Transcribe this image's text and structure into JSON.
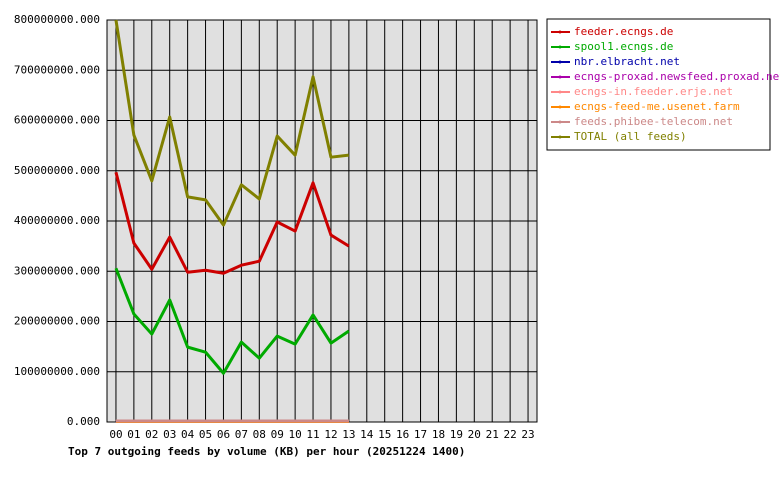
{
  "chart_data": {
    "type": "line",
    "title": "Top 7 outgoing feeds by volume (KB) per hour (20251224 1400)",
    "categories": [
      "00",
      "01",
      "02",
      "03",
      "04",
      "05",
      "06",
      "07",
      "08",
      "09",
      "10",
      "11",
      "12",
      "13",
      "14",
      "15",
      "16",
      "17",
      "18",
      "19",
      "20",
      "21",
      "22",
      "23"
    ],
    "series": [
      {
        "name": "feeder.ecngs.de",
        "color": "#cc0000",
        "values": [
          497000000,
          356000000,
          304000000,
          368000000,
          298000000,
          302000000,
          296000000,
          312000000,
          320000000,
          398000000,
          380000000,
          476000000,
          372000000,
          350000000,
          null,
          null,
          null,
          null,
          null,
          null,
          null,
          null,
          null,
          null
        ]
      },
      {
        "name": "spool1.ecngs.de",
        "color": "#00aa00",
        "values": [
          306000000,
          215000000,
          175000000,
          243000000,
          149000000,
          139000000,
          97000000,
          159000000,
          127000000,
          171000000,
          155000000,
          213000000,
          157000000,
          181000000,
          null,
          null,
          null,
          null,
          null,
          null,
          null,
          null,
          null,
          null
        ]
      },
      {
        "name": "nbr.elbracht.net",
        "color": "#0000aa",
        "values": [
          1000000,
          1000000,
          1000000,
          1000000,
          1000000,
          1000000,
          1000000,
          1000000,
          1000000,
          1000000,
          1000000,
          1000000,
          1000000,
          1000000,
          null,
          null,
          null,
          null,
          null,
          null,
          null,
          null,
          null,
          null
        ]
      },
      {
        "name": "ecngs-proxad.newsfeed.proxad.net",
        "color": "#aa00aa",
        "values": [
          1000000,
          1000000,
          1000000,
          1000000,
          1000000,
          1000000,
          1000000,
          1000000,
          1000000,
          1000000,
          1000000,
          1000000,
          1000000,
          1000000,
          null,
          null,
          null,
          null,
          null,
          null,
          null,
          null,
          null,
          null
        ]
      },
      {
        "name": "ecngs-in.feeder.erje.net",
        "color": "#ff8888",
        "values": [
          2000000,
          2000000,
          2000000,
          2000000,
          2000000,
          2000000,
          2000000,
          2000000,
          2000000,
          2000000,
          2000000,
          2000000,
          2000000,
          2000000,
          null,
          null,
          null,
          null,
          null,
          null,
          null,
          null,
          null,
          null
        ]
      },
      {
        "name": "ecngs-feed-me.usenet.farm",
        "color": "#ff8800",
        "values": [
          1000000,
          1000000,
          1000000,
          1000000,
          1000000,
          1000000,
          1000000,
          1000000,
          1000000,
          1000000,
          1000000,
          1000000,
          1000000,
          1000000,
          null,
          null,
          null,
          null,
          null,
          null,
          null,
          null,
          null,
          null
        ]
      },
      {
        "name": "feeds.phibee-telecom.net",
        "color": "#cc8888",
        "values": [
          2000000,
          2000000,
          2000000,
          2000000,
          2000000,
          2000000,
          2000000,
          2000000,
          2000000,
          2000000,
          2000000,
          2000000,
          2000000,
          2000000,
          null,
          null,
          null,
          null,
          null,
          null,
          null,
          null,
          null,
          null
        ]
      },
      {
        "name": "TOTAL (all feeds)",
        "color": "#808000",
        "values": [
          800000000,
          571000000,
          480000000,
          607000000,
          448000000,
          442000000,
          392000000,
          472000000,
          444000000,
          569000000,
          531000000,
          687000000,
          527000000,
          531000000,
          null,
          null,
          null,
          null,
          null,
          null,
          null,
          null,
          null,
          null
        ]
      }
    ],
    "ylim": [
      0,
      800000000
    ],
    "yticks": [
      {
        "value": 0,
        "label": "0.000"
      },
      {
        "value": 100000000,
        "label": "100000000.000"
      },
      {
        "value": 200000000,
        "label": "200000000.000"
      },
      {
        "value": 300000000,
        "label": "300000000.000"
      },
      {
        "value": 400000000,
        "label": "400000000.000"
      },
      {
        "value": 500000000,
        "label": "500000000.000"
      },
      {
        "value": 600000000,
        "label": "600000000.000"
      },
      {
        "value": 700000000,
        "label": "700000000.000"
      },
      {
        "value": 800000000,
        "label": "800000000.000"
      }
    ],
    "grid": true,
    "legend": "right"
  }
}
